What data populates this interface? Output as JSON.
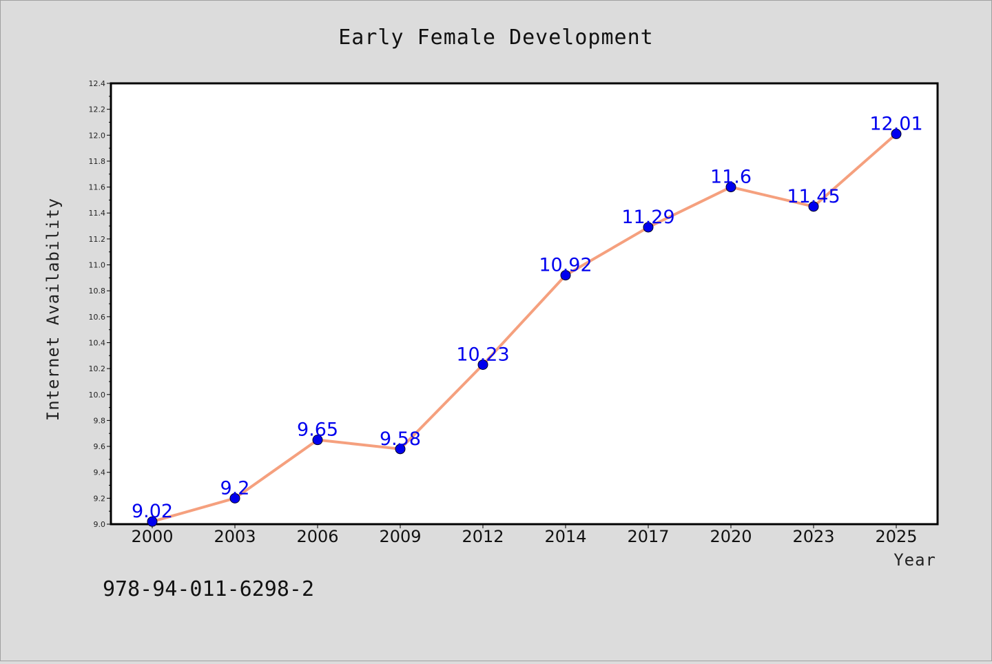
{
  "isbn": "978-94-011-6298-2",
  "chart_data": {
    "type": "line",
    "title": "Early Female Development",
    "xlabel": "Year",
    "ylabel": "Internet Availability",
    "categories": [
      "2000",
      "2003",
      "2006",
      "2009",
      "2012",
      "2014",
      "2017",
      "2020",
      "2023",
      "2025"
    ],
    "values": [
      9.02,
      9.2,
      9.65,
      9.58,
      10.23,
      10.92,
      11.29,
      11.6,
      11.45,
      12.01
    ],
    "data_labels": [
      "9.02",
      "9.2",
      "9.65",
      "9.58",
      "10.23",
      "10.92",
      "11.29",
      "11.6",
      "11.45",
      "12.01"
    ],
    "yticks": [
      "9.0",
      "9.2",
      "9.4",
      "9.6",
      "9.8",
      "10.0",
      "10.2",
      "10.4",
      "10.6",
      "10.8",
      "11.0",
      "11.2",
      "11.4",
      "11.6",
      "11.8",
      "12.0",
      "12.2",
      "12.4"
    ],
    "ylim": [
      9.0,
      12.4
    ],
    "grid": false,
    "colors": {
      "line": "#f5a07e",
      "marker": "#0000ee",
      "label": "#0000ee",
      "background": "#dcdcdc",
      "plot_background": "#ffffff"
    }
  }
}
